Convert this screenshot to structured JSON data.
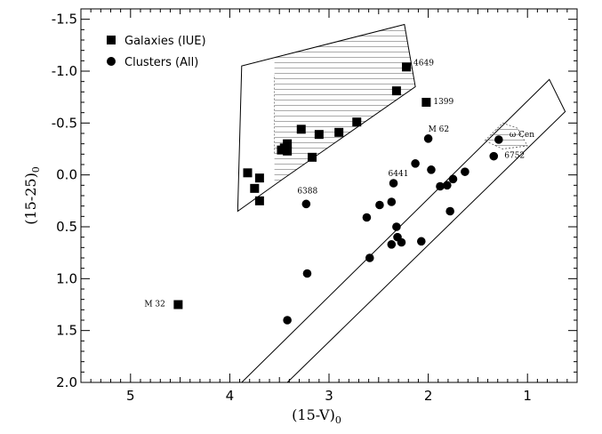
{
  "chart_data": {
    "type": "scatter",
    "xlabel": "(15-V)",
    "xlabel_sub": "0",
    "ylabel": "(15-25)",
    "ylabel_sub": "0",
    "xlim": [
      5.5,
      0.5
    ],
    "ylim": [
      2.0,
      -1.6
    ],
    "x_inverted": true,
    "y_inverted": true,
    "x_ticks": [
      5,
      4,
      3,
      2,
      1
    ],
    "x_tick_labels": [
      "5",
      "4",
      "3",
      "2",
      "1"
    ],
    "y_ticks": [
      -1.5,
      -1.0,
      -0.5,
      0.0,
      0.5,
      1.0,
      1.5,
      2.0
    ],
    "y_tick_labels": [
      "-1.5",
      "-1.0",
      "-0.5",
      "0.0",
      "0.5",
      "1.0",
      "1.5",
      "2.0"
    ],
    "grid": false,
    "legend_position": "top-left",
    "series": [
      {
        "name": "Galaxies (IUE)",
        "marker": "square",
        "points": [
          {
            "x": 4.52,
            "y": 1.25,
            "label": "M 32"
          },
          {
            "x": 2.22,
            "y": -1.04,
            "label": "4649"
          },
          {
            "x": 2.02,
            "y": -0.7,
            "label": "1399"
          },
          {
            "x": 2.32,
            "y": -0.81
          },
          {
            "x": 2.72,
            "y": -0.51
          },
          {
            "x": 2.9,
            "y": -0.41
          },
          {
            "x": 3.1,
            "y": -0.39
          },
          {
            "x": 3.28,
            "y": -0.44
          },
          {
            "x": 3.42,
            "y": -0.3
          },
          {
            "x": 3.45,
            "y": -0.26
          },
          {
            "x": 3.48,
            "y": -0.24
          },
          {
            "x": 3.42,
            "y": -0.23
          },
          {
            "x": 3.17,
            "y": -0.17
          },
          {
            "x": 3.82,
            "y": -0.02
          },
          {
            "x": 3.7,
            "y": 0.03
          },
          {
            "x": 3.75,
            "y": 0.13
          },
          {
            "x": 3.7,
            "y": 0.25
          }
        ]
      },
      {
        "name": "Clusters (All)",
        "marker": "circle",
        "points": [
          {
            "x": 2.0,
            "y": -0.35,
            "label": "M 62"
          },
          {
            "x": 1.29,
            "y": -0.34,
            "label": "ω Cen"
          },
          {
            "x": 1.34,
            "y": -0.18,
            "label": "6752"
          },
          {
            "x": 2.35,
            "y": 0.08,
            "label": "6441"
          },
          {
            "x": 3.23,
            "y": 0.28,
            "label": "6388"
          },
          {
            "x": 2.13,
            "y": -0.11
          },
          {
            "x": 1.97,
            "y": -0.05
          },
          {
            "x": 1.63,
            "y": -0.03
          },
          {
            "x": 1.75,
            "y": 0.04
          },
          {
            "x": 1.81,
            "y": 0.1
          },
          {
            "x": 1.88,
            "y": 0.11
          },
          {
            "x": 2.37,
            "y": 0.26
          },
          {
            "x": 2.49,
            "y": 0.29
          },
          {
            "x": 1.78,
            "y": 0.35
          },
          {
            "x": 2.62,
            "y": 0.41
          },
          {
            "x": 2.32,
            "y": 0.5
          },
          {
            "x": 2.31,
            "y": 0.6
          },
          {
            "x": 2.27,
            "y": 0.65
          },
          {
            "x": 2.37,
            "y": 0.67
          },
          {
            "x": 2.07,
            "y": 0.64
          },
          {
            "x": 2.59,
            "y": 0.8
          },
          {
            "x": 3.22,
            "y": 0.95
          },
          {
            "x": 3.42,
            "y": 1.4
          }
        ]
      }
    ],
    "regions": [
      {
        "id": "galaxy-region",
        "outline": [
          [
            3.92,
            0.35
          ],
          [
            3.88,
            -1.05
          ],
          [
            2.24,
            -1.45
          ],
          [
            2.13,
            -0.85
          ],
          [
            3.48,
            0.05
          ]
        ],
        "hatch_left_x": 3.55
      },
      {
        "id": "cluster-band",
        "outline": [
          [
            3.88,
            2.0
          ],
          [
            0.78,
            -0.92
          ],
          [
            0.62,
            -0.61
          ],
          [
            3.42,
            2.0
          ]
        ]
      },
      {
        "id": "omega-cen-zone",
        "outline": [
          [
            1.43,
            -0.33
          ],
          [
            1.25,
            -0.5
          ],
          [
            1.1,
            -0.45
          ],
          [
            1.0,
            -0.28
          ],
          [
            1.25,
            -0.25
          ]
        ]
      }
    ]
  }
}
